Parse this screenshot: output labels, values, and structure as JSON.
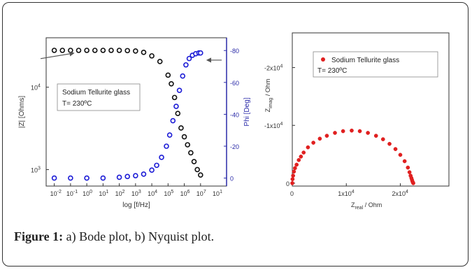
{
  "caption": {
    "label": "Figure 1:",
    "text": " a) Bode plot, b) Nyquist plot."
  },
  "chart_data": [
    {
      "type": "scatter",
      "title": "",
      "xlabel": "log [f/Hz]",
      "ylabel": "|Z| [Ohms]",
      "y2label": "Phi [Deg]",
      "x_ticks": [
        {
          "exp": -2,
          "label": "10",
          "sup": "-2"
        },
        {
          "exp": -1,
          "label": "10",
          "sup": "-1"
        },
        {
          "exp": 0,
          "label": "10",
          "sup": "0"
        },
        {
          "exp": 1,
          "label": "10",
          "sup": "1"
        },
        {
          "exp": 2,
          "label": "10",
          "sup": "2"
        },
        {
          "exp": 3,
          "label": "10",
          "sup": "3"
        },
        {
          "exp": 4,
          "label": "10",
          "sup": "4"
        },
        {
          "exp": 5,
          "label": "10",
          "sup": "5"
        },
        {
          "exp": 6,
          "label": "10",
          "sup": "6"
        },
        {
          "exp": 7,
          "label": "10",
          "sup": "7"
        }
      ],
      "x_extra_tick": {
        "label": "10",
        "sup": "1"
      },
      "xlim_log10": [
        -2.5,
        8.6
      ],
      "y_ticks": [
        {
          "exp": 3,
          "label": "10",
          "sup": "3"
        },
        {
          "exp": 4,
          "label": "10",
          "sup": "4"
        }
      ],
      "ylim_log10": [
        2.8,
        4.6
      ],
      "y2_ticks": [
        -80,
        -60,
        -40,
        -20,
        0
      ],
      "y2_tick_labels": [
        "-80",
        "-60",
        "-40",
        "-20",
        "0"
      ],
      "y2lim": [
        5,
        -88
      ],
      "annotation": {
        "line1": "Sodium Tellurite glass",
        "line2": "T= 230ºC"
      },
      "colors": {
        "impedance": "#111111",
        "phase": "#1c1cd6",
        "axis2": "#2a2aa8",
        "arrow": "#555555"
      },
      "series": [
        {
          "quantity": "impedance",
          "marker": "o",
          "log10_f": [
            -2.0,
            -1.5,
            -1.0,
            -0.5,
            0.0,
            0.5,
            1.0,
            1.5,
            2.0,
            2.5,
            3.0,
            3.5,
            4.0,
            4.5,
            5.0,
            5.2,
            5.4,
            5.6,
            5.8,
            6.0,
            6.2,
            6.4,
            6.6,
            6.8,
            7.0
          ],
          "Z_ohm": [
            28000,
            28000,
            28000,
            28000,
            28000,
            28000,
            28000,
            28000,
            28000,
            27800,
            27500,
            26500,
            24000,
            20500,
            14000,
            11000,
            7500,
            4800,
            3200,
            2500,
            2000,
            1600,
            1250,
            1000,
            860
          ]
        },
        {
          "quantity": "phase",
          "marker": "o",
          "log10_f": [
            -2.0,
            -1.0,
            0.0,
            1.0,
            2.0,
            2.5,
            3.0,
            3.5,
            4.0,
            4.3,
            4.6,
            4.9,
            5.1,
            5.3,
            5.5,
            5.7,
            5.9,
            6.1,
            6.3,
            6.5,
            6.7,
            6.9,
            7.0
          ],
          "phi_deg": [
            0,
            0,
            0,
            0,
            -0.5,
            -1,
            -1.5,
            -2.5,
            -5,
            -8,
            -13,
            -20,
            -27,
            -36,
            -45,
            -55,
            -64,
            -71,
            -75,
            -77,
            -78,
            -78.5,
            -78.5
          ]
        }
      ],
      "arrows": [
        {
          "points_to": "impedance",
          "from": [
            -2.5,
            25000
          ],
          "to": [
            -0.8,
            28000
          ]
        },
        {
          "points_to": "phase",
          "from": [
            8.3,
            -74
          ],
          "to": [
            7.4,
            -74
          ]
        }
      ]
    },
    {
      "type": "scatter",
      "title": "",
      "xlabel": "Z",
      "xlabel_sub": "real",
      "xlabel_rest": " / Ohm",
      "ylabel": "Z",
      "ylabel_sub": "imag",
      "ylabel_rest": " / Ohm",
      "x_ticks": [
        {
          "value": 0,
          "label": "0",
          "sup": ""
        },
        {
          "value": 10000,
          "label": "1x10",
          "sup": "4"
        },
        {
          "value": 20000,
          "label": "2x10",
          "sup": "4"
        }
      ],
      "xlim": [
        0,
        29000
      ],
      "y_ticks": [
        {
          "value": 0,
          "label": "0",
          "sup": ""
        },
        {
          "value": -10000,
          "label": "-1x10",
          "sup": "4"
        },
        {
          "value": -20000,
          "label": "-2x10",
          "sup": "4"
        }
      ],
      "ylim": [
        500,
        -26000
      ],
      "legend": {
        "name": "Sodium Tellurite glass",
        "line2": "T= 230ºC",
        "placement": "top-right"
      },
      "color": "#e02020",
      "points": [
        [
          0,
          0
        ],
        [
          50,
          -700
        ],
        [
          150,
          -1300
        ],
        [
          300,
          -2000
        ],
        [
          500,
          -2600
        ],
        [
          800,
          -3200
        ],
        [
          1200,
          -4000
        ],
        [
          1600,
          -4600
        ],
        [
          2100,
          -5300
        ],
        [
          2900,
          -6200
        ],
        [
          3900,
          -7000
        ],
        [
          5100,
          -7700
        ],
        [
          6400,
          -8200
        ],
        [
          7900,
          -8700
        ],
        [
          9400,
          -9000
        ],
        [
          11000,
          -9100
        ],
        [
          12500,
          -9000
        ],
        [
          14000,
          -8700
        ],
        [
          15500,
          -8200
        ],
        [
          16800,
          -7600
        ],
        [
          18000,
          -6800
        ],
        [
          19100,
          -5900
        ],
        [
          20000,
          -4900
        ],
        [
          20800,
          -3800
        ],
        [
          21400,
          -2700
        ],
        [
          21700,
          -1900
        ],
        [
          21900,
          -1300
        ],
        [
          22050,
          -900
        ],
        [
          22150,
          -600
        ],
        [
          22250,
          -300
        ],
        [
          22350,
          -100
        ],
        [
          22400,
          0
        ]
      ]
    }
  ]
}
